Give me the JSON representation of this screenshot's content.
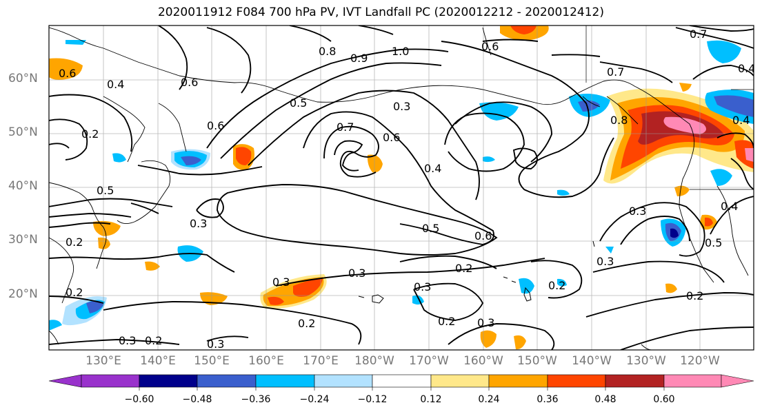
{
  "title": "2020011912 F084 700 hPa PV, IVT Landfall PC (2020012212 - 2020012412)",
  "lat_labels": [
    "60°N",
    "50°N",
    "40°N",
    "30°N",
    "20°N"
  ],
  "lon_labels": [
    "130°E",
    "140°E",
    "150°E",
    "160°E",
    "170°E",
    "180°W",
    "170°W",
    "160°W",
    "150°W",
    "140°W",
    "130°W",
    "120°W"
  ],
  "colorbar": {
    "ticks": [
      "−0.60",
      "−0.48",
      "−0.36",
      "−0.24",
      "−0.12",
      "0.12",
      "0.24",
      "0.36",
      "0.48",
      "0.60"
    ],
    "colors": [
      "#9932CC",
      "#00008B",
      "#3A5FCD",
      "#00BFFF",
      "#B2E2FF",
      "#FFFFFF",
      "#FFE88A",
      "#FFA500",
      "#FF4500",
      "#B22222",
      "#FF89B5"
    ]
  },
  "contour_labels": [
    "0.8",
    "0.9",
    "1.0",
    "0.6",
    "0.7",
    "0.7",
    "0.4",
    "0.5",
    "0.3",
    "0.6",
    "0.7",
    "0.6",
    "0.4",
    "0.6",
    "0.8",
    "0.4",
    "0.5",
    "0.3",
    "0.2",
    "0.5",
    "0.6",
    "0.3",
    "0.2",
    "0.3",
    "0.3",
    "0.2",
    "0.3",
    "0.2",
    "0.3",
    "0.2",
    "0.2",
    "0.3",
    "0.2",
    "0.5",
    "0.3",
    "0.6",
    "0.4",
    "0.2",
    "0.2",
    "0.3",
    "0.4"
  ]
}
